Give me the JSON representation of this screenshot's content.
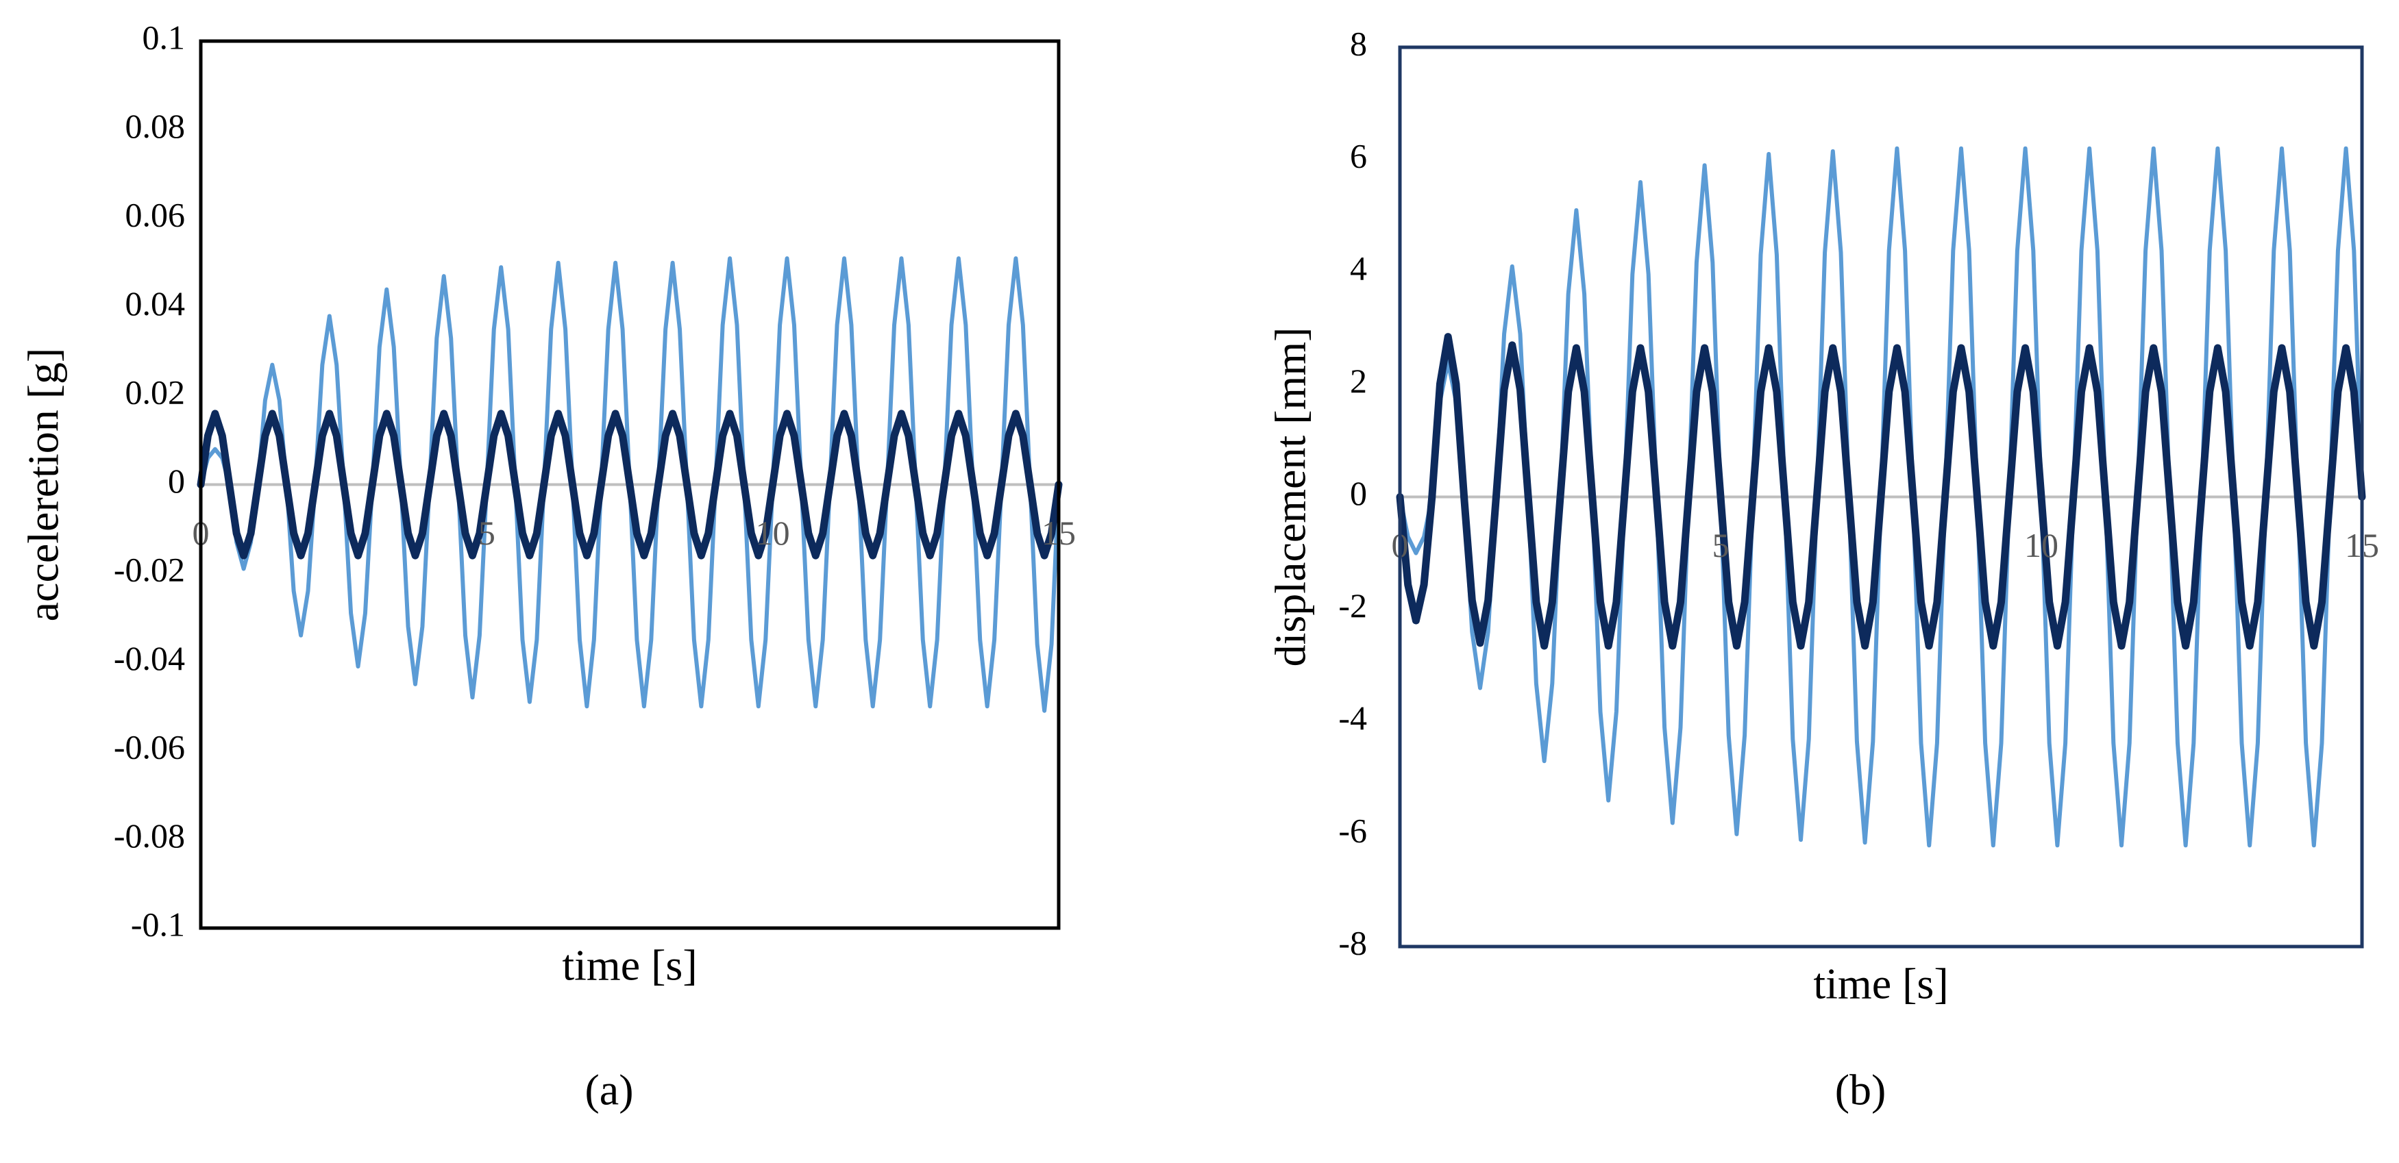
{
  "chart_data": [
    {
      "type": "line",
      "caption": "(a)",
      "x_label": "time [s]",
      "y_label": "acceleretion [g]",
      "xlim": [
        0,
        15
      ],
      "ylim": [
        -0.1,
        0.1
      ],
      "xticks": [
        0,
        5,
        10,
        15
      ],
      "yticks": [
        -0.1,
        -0.08,
        -0.06,
        -0.04,
        -0.02,
        0,
        0.02,
        0.04,
        0.06,
        0.08,
        0.1
      ],
      "frame_color": "#000000",
      "x": [
        0,
        0.125,
        0.25,
        0.375,
        0.5,
        0.625,
        0.75,
        0.875,
        1,
        1.125,
        1.25,
        1.375,
        1.5,
        1.625,
        1.75,
        1.875,
        2,
        2.125,
        2.25,
        2.375,
        2.5,
        2.625,
        2.75,
        2.875,
        3,
        3.125,
        3.25,
        3.375,
        3.5,
        3.625,
        3.75,
        3.875,
        4,
        4.125,
        4.25,
        4.375,
        4.5,
        4.625,
        4.75,
        4.875,
        5,
        5.125,
        5.25,
        5.375,
        5.5,
        5.625,
        5.75,
        5.875,
        6,
        6.125,
        6.25,
        6.375,
        6.5,
        6.625,
        6.75,
        6.875,
        7,
        7.125,
        7.25,
        7.375,
        7.5,
        7.625,
        7.75,
        7.875,
        8,
        8.125,
        8.25,
        8.375,
        8.5,
        8.625,
        8.75,
        8.875,
        9,
        9.125,
        9.25,
        9.375,
        9.5,
        9.625,
        9.75,
        9.875,
        10,
        10.125,
        10.25,
        10.375,
        10.5,
        10.625,
        10.75,
        10.875,
        11,
        11.125,
        11.25,
        11.375,
        11.5,
        11.625,
        11.75,
        11.875,
        12,
        12.125,
        12.25,
        12.375,
        12.5,
        12.625,
        12.75,
        12.875,
        13,
        13.125,
        13.25,
        13.375,
        13.5,
        13.625,
        13.75,
        13.875,
        14,
        14.125,
        14.25,
        14.375,
        14.5,
        14.625,
        14.75,
        14.875,
        15
      ],
      "series": [
        {
          "color": "#5b9bd5",
          "width": 6,
          "values": [
            0,
            0.006,
            0.008,
            0.006,
            0,
            -0.013,
            -0.019,
            -0.013,
            0,
            0.019,
            0.027,
            0.019,
            0,
            -0.024,
            -0.034,
            -0.024,
            0,
            0.027,
            0.038,
            0.027,
            0,
            -0.029,
            -0.041,
            -0.029,
            0,
            0.031,
            0.044,
            0.031,
            0,
            -0.032,
            -0.045,
            -0.032,
            0,
            0.033,
            0.047,
            0.033,
            0,
            -0.034,
            -0.048,
            -0.034,
            0,
            0.035,
            0.049,
            0.035,
            0,
            -0.035,
            -0.049,
            -0.035,
            0,
            0.035,
            0.05,
            0.035,
            0,
            -0.035,
            -0.05,
            -0.035,
            0,
            0.035,
            0.05,
            0.035,
            0,
            -0.035,
            -0.05,
            -0.035,
            0,
            0.035,
            0.05,
            0.035,
            0,
            -0.035,
            -0.05,
            -0.035,
            0,
            0.036,
            0.051,
            0.036,
            0,
            -0.035,
            -0.05,
            -0.035,
            0,
            0.036,
            0.051,
            0.036,
            0,
            -0.035,
            -0.05,
            -0.035,
            0,
            0.036,
            0.051,
            0.036,
            0,
            -0.035,
            -0.05,
            -0.035,
            0,
            0.036,
            0.051,
            0.036,
            0,
            -0.035,
            -0.05,
            -0.035,
            0,
            0.036,
            0.051,
            0.036,
            0,
            -0.035,
            -0.05,
            -0.035,
            0,
            0.036,
            0.051,
            0.036,
            0,
            -0.036,
            -0.051,
            -0.036,
            0
          ]
        },
        {
          "color": "#0d2a5c",
          "width": 11,
          "values": [
            0,
            0.011,
            0.016,
            0.011,
            0,
            -0.011,
            -0.016,
            -0.011,
            0,
            0.011,
            0.016,
            0.011,
            0,
            -0.011,
            -0.016,
            -0.011,
            0,
            0.011,
            0.016,
            0.011,
            0,
            -0.011,
            -0.016,
            -0.011,
            0,
            0.011,
            0.016,
            0.011,
            0,
            -0.011,
            -0.016,
            -0.011,
            0,
            0.011,
            0.016,
            0.011,
            0,
            -0.011,
            -0.016,
            -0.011,
            0,
            0.011,
            0.016,
            0.011,
            0,
            -0.011,
            -0.016,
            -0.011,
            0,
            0.011,
            0.016,
            0.011,
            0,
            -0.011,
            -0.016,
            -0.011,
            0,
            0.011,
            0.016,
            0.011,
            0,
            -0.011,
            -0.016,
            -0.011,
            0,
            0.011,
            0.016,
            0.011,
            0,
            -0.011,
            -0.016,
            -0.011,
            0,
            0.011,
            0.016,
            0.011,
            0,
            -0.011,
            -0.016,
            -0.011,
            0,
            0.011,
            0.016,
            0.011,
            0,
            -0.011,
            -0.016,
            -0.011,
            0,
            0.011,
            0.016,
            0.011,
            0,
            -0.011,
            -0.016,
            -0.011,
            0,
            0.011,
            0.016,
            0.011,
            0,
            -0.011,
            -0.016,
            -0.011,
            0,
            0.011,
            0.016,
            0.011,
            0,
            -0.011,
            -0.016,
            -0.011,
            0,
            0.011,
            0.016,
            0.011,
            0,
            -0.011,
            -0.016,
            -0.011,
            0
          ]
        }
      ]
    },
    {
      "type": "line",
      "caption": "(b)",
      "x_label": "time [s]",
      "y_label": "displacement [mm]",
      "xlim": [
        0,
        15
      ],
      "ylim": [
        -8,
        8
      ],
      "xticks": [
        0,
        5,
        10,
        15
      ],
      "yticks": [
        -8,
        -6,
        -4,
        -2,
        0,
        2,
        4,
        6,
        8
      ],
      "frame_color": "#1f3864",
      "x": [
        0,
        0.125,
        0.25,
        0.375,
        0.5,
        0.625,
        0.75,
        0.875,
        1,
        1.125,
        1.25,
        1.375,
        1.5,
        1.625,
        1.75,
        1.875,
        2,
        2.125,
        2.25,
        2.375,
        2.5,
        2.625,
        2.75,
        2.875,
        3,
        3.125,
        3.25,
        3.375,
        3.5,
        3.625,
        3.75,
        3.875,
        4,
        4.125,
        4.25,
        4.375,
        4.5,
        4.625,
        4.75,
        4.875,
        5,
        5.125,
        5.25,
        5.375,
        5.5,
        5.625,
        5.75,
        5.875,
        6,
        6.125,
        6.25,
        6.375,
        6.5,
        6.625,
        6.75,
        6.875,
        7,
        7.125,
        7.25,
        7.375,
        7.5,
        7.625,
        7.75,
        7.875,
        8,
        8.125,
        8.25,
        8.375,
        8.5,
        8.625,
        8.75,
        8.875,
        9,
        9.125,
        9.25,
        9.375,
        9.5,
        9.625,
        9.75,
        9.875,
        10,
        10.125,
        10.25,
        10.375,
        10.5,
        10.625,
        10.75,
        10.875,
        11,
        11.125,
        11.25,
        11.375,
        11.5,
        11.625,
        11.75,
        11.875,
        12,
        12.125,
        12.25,
        12.375,
        12.5,
        12.625,
        12.75,
        12.875,
        13,
        13.125,
        13.25,
        13.375,
        13.5,
        13.625,
        13.75,
        13.875,
        14,
        14.125,
        14.25,
        14.375,
        14.5,
        14.625,
        14.75,
        14.875,
        15
      ],
      "series": [
        {
          "color": "#5b9bd5",
          "width": 6,
          "values": [
            0,
            -0.71,
            -1,
            -0.71,
            0,
            1.7,
            2.4,
            1.7,
            0,
            -2.4,
            -3.4,
            -2.4,
            0,
            2.9,
            4.1,
            2.9,
            0,
            -3.32,
            -4.7,
            -3.32,
            0,
            3.61,
            5.1,
            3.61,
            0,
            -3.82,
            -5.4,
            -3.82,
            0,
            3.96,
            5.6,
            3.96,
            0,
            -4.1,
            -5.8,
            -4.1,
            0,
            4.17,
            5.9,
            4.17,
            0,
            -4.24,
            -6,
            -4.24,
            0,
            4.31,
            6.1,
            4.31,
            0,
            -4.31,
            -6.1,
            -4.31,
            0,
            4.35,
            6.15,
            4.35,
            0,
            -4.35,
            -6.15,
            -4.35,
            0,
            4.38,
            6.2,
            4.38,
            0,
            -4.38,
            -6.2,
            -4.38,
            0,
            4.38,
            6.2,
            4.38,
            0,
            -4.38,
            -6.2,
            -4.38,
            0,
            4.38,
            6.2,
            4.38,
            0,
            -4.38,
            -6.2,
            -4.38,
            0,
            4.38,
            6.2,
            4.38,
            0,
            -4.38,
            -6.2,
            -4.38,
            0,
            4.38,
            6.2,
            4.38,
            0,
            -4.38,
            -6.2,
            -4.38,
            0,
            4.38,
            6.2,
            4.38,
            0,
            -4.38,
            -6.2,
            -4.38,
            0,
            4.38,
            6.2,
            4.38,
            0,
            -4.38,
            -6.2,
            -4.38,
            0,
            4.38,
            6.2,
            4.38,
            0
          ]
        },
        {
          "color": "#0d2a5c",
          "width": 11,
          "values": [
            0,
            -1.56,
            -2.2,
            -1.56,
            0,
            2.01,
            2.85,
            2.01,
            0,
            -1.84,
            -2.6,
            -1.84,
            0,
            1.91,
            2.7,
            1.91,
            0,
            -1.87,
            -2.65,
            -1.87,
            0,
            1.87,
            2.65,
            1.87,
            0,
            -1.87,
            -2.65,
            -1.87,
            0,
            1.87,
            2.65,
            1.87,
            0,
            -1.87,
            -2.65,
            -1.87,
            0,
            1.87,
            2.65,
            1.87,
            0,
            -1.87,
            -2.65,
            -1.87,
            0,
            1.87,
            2.65,
            1.87,
            0,
            -1.87,
            -2.65,
            -1.87,
            0,
            1.87,
            2.65,
            1.87,
            0,
            -1.87,
            -2.65,
            -1.87,
            0,
            1.87,
            2.65,
            1.87,
            0,
            -1.87,
            -2.65,
            -1.87,
            0,
            1.87,
            2.65,
            1.87,
            0,
            -1.87,
            -2.65,
            -1.87,
            0,
            1.87,
            2.65,
            1.87,
            0,
            -1.87,
            -2.65,
            -1.87,
            0,
            1.87,
            2.65,
            1.87,
            0,
            -1.87,
            -2.65,
            -1.87,
            0,
            1.87,
            2.65,
            1.87,
            0,
            -1.87,
            -2.65,
            -1.87,
            0,
            1.87,
            2.65,
            1.87,
            0,
            -1.87,
            -2.65,
            -1.87,
            0,
            1.87,
            2.65,
            1.87,
            0,
            -1.87,
            -2.65,
            -1.87,
            0,
            1.87,
            2.65,
            1.87,
            0
          ]
        }
      ]
    }
  ]
}
